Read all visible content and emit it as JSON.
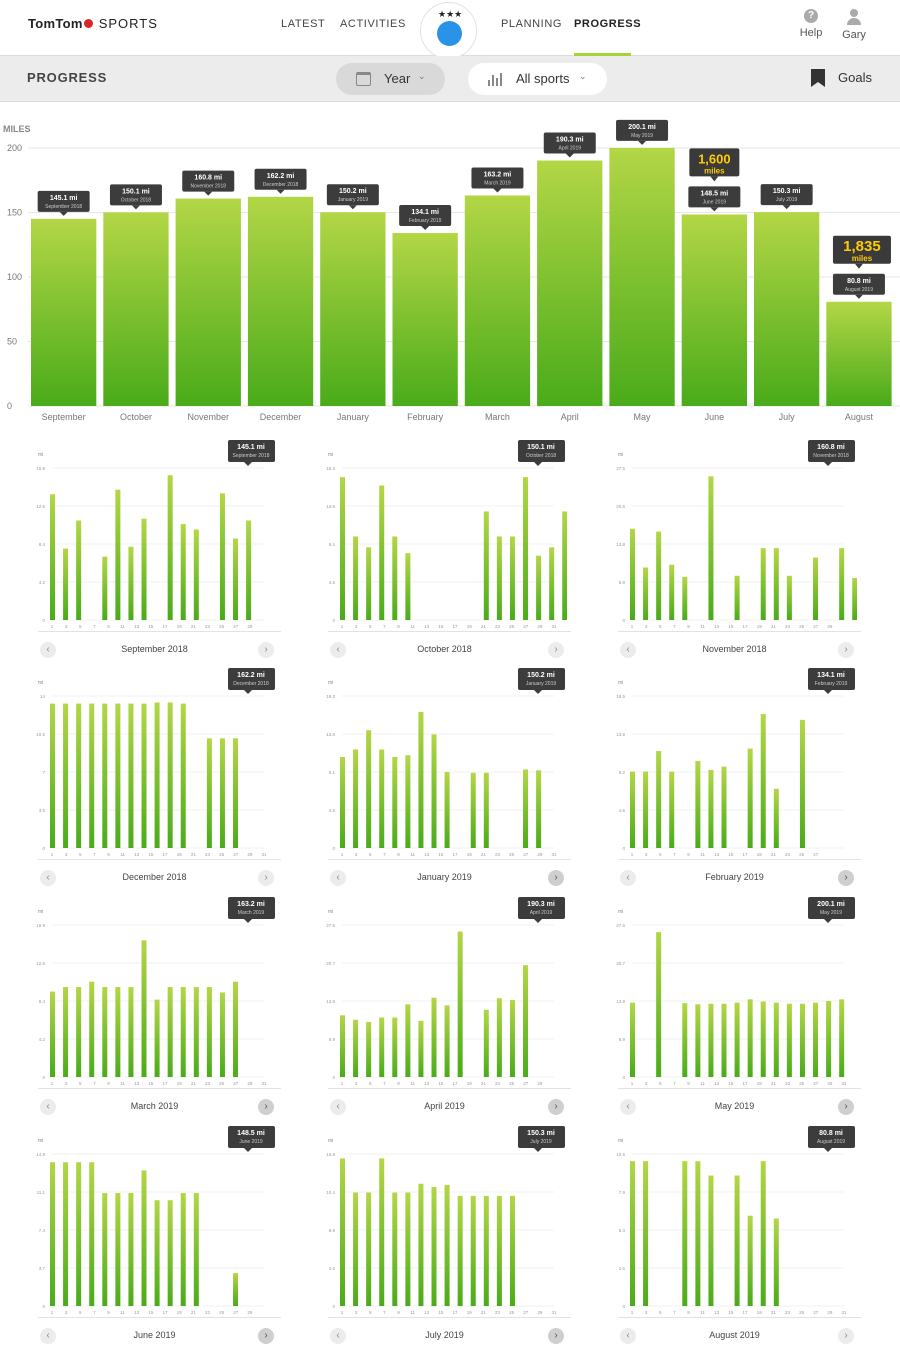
{
  "header": {
    "logo_brand": "TomTom",
    "logo_sub": "SPORTS",
    "nav": [
      {
        "label": "LATEST"
      },
      {
        "label": "ACTIVITIES"
      },
      {
        "label": "PLANNING"
      },
      {
        "label": "PROGRESS"
      }
    ],
    "avatar_stars": "★★★",
    "help_label": "Help",
    "help_glyph": "?",
    "user_label": "Gary"
  },
  "subbar": {
    "title": "PROGRESS",
    "period_label": "Year",
    "sport_label": "All sports",
    "goals_label": "Goals"
  },
  "colors": {
    "bar_top": "#b3d646",
    "bar_bottom": "#4aab1a",
    "accent": "#a8d138",
    "goal_badge": "#ffcb05",
    "tooltip": "#3c3c3c"
  },
  "chart_data": [
    {
      "type": "bar",
      "title": "",
      "ylabel": "MILES",
      "ylim": [
        0,
        200
      ],
      "yticks": [
        0,
        50,
        100,
        150,
        200
      ],
      "categories": [
        "September",
        "October",
        "November",
        "December",
        "January",
        "February",
        "March",
        "April",
        "May",
        "June",
        "July",
        "August"
      ],
      "values": [
        145.1,
        150.1,
        160.8,
        162.2,
        150.2,
        134.1,
        163.2,
        190.3,
        200.1,
        148.5,
        150.3,
        80.8
      ],
      "value_labels": [
        "145.1 mi",
        "150.1 mi",
        "160.8 mi",
        "162.2 mi",
        "150.2 mi",
        "134.1 mi",
        "163.2 mi",
        "190.3 mi",
        "200.1 mi",
        "148.5 mi",
        "150.3 mi",
        "80.8 mi"
      ],
      "sub_labels": [
        "September 2018",
        "October 2018",
        "November 2018",
        "December 2018",
        "January 2019",
        "February 2019",
        "March 2019",
        "April 2019",
        "May 2019",
        "June 2019",
        "July 2019",
        "August 2019"
      ],
      "goal_badges": [
        {
          "index": 9,
          "value": "1,600",
          "unit": "miles"
        },
        {
          "index": 11,
          "value": "1,835",
          "unit": "miles"
        }
      ]
    },
    {
      "type": "bar",
      "name": "September 2018",
      "total": "145.1 mi",
      "ylabel": "mi",
      "yticks": [
        "0",
        "4.2",
        "8.4",
        "12.6",
        "16.8"
      ],
      "ymax": 16.8,
      "days": 30,
      "xticks": [
        "1",
        "3",
        "5",
        "7",
        "9",
        "11",
        "13",
        "15",
        "17",
        "19",
        "21",
        "23",
        "25",
        "27",
        "29"
      ],
      "values": [
        {
          "d": 1,
          "v": 13.9
        },
        {
          "d": 2,
          "v": 7.9
        },
        {
          "d": 3,
          "v": 11
        },
        {
          "d": 5,
          "v": 7
        },
        {
          "d": 6,
          "v": 14.4
        },
        {
          "d": 7,
          "v": 8.1
        },
        {
          "d": 8,
          "v": 11.2
        },
        {
          "d": 10,
          "v": 16
        },
        {
          "d": 11,
          "v": 10.6
        },
        {
          "d": 12,
          "v": 10
        },
        {
          "d": 14,
          "v": 14
        },
        {
          "d": 15,
          "v": 9
        },
        {
          "d": 16,
          "v": 11
        }
      ]
    },
    {
      "type": "bar",
      "name": "October 2018",
      "total": "150.1 mi",
      "ylabel": "mi",
      "yticks": [
        "0",
        "4.5",
        "9.1",
        "13.6",
        "18.2"
      ],
      "ymax": 18.2,
      "days": 31,
      "xticks": [
        "1",
        "3",
        "5",
        "7",
        "9",
        "11",
        "13",
        "15",
        "17",
        "19",
        "21",
        "23",
        "25",
        "27",
        "29",
        "31"
      ],
      "values": [
        {
          "d": 1,
          "v": 17.1
        },
        {
          "d": 2,
          "v": 10
        },
        {
          "d": 3,
          "v": 8.7
        },
        {
          "d": 4,
          "v": 16.1
        },
        {
          "d": 5,
          "v": 10
        },
        {
          "d": 6,
          "v": 8
        },
        {
          "d": 12,
          "v": 13
        },
        {
          "d": 13,
          "v": 10
        },
        {
          "d": 14,
          "v": 10
        },
        {
          "d": 15,
          "v": 17.1
        },
        {
          "d": 16,
          "v": 7.7
        },
        {
          "d": 17,
          "v": 8.7
        },
        {
          "d": 18,
          "v": 13
        }
      ]
    },
    {
      "type": "bar",
      "name": "November 2018",
      "total": "160.8 mi",
      "ylabel": "mi",
      "yticks": [
        "0",
        "6.9",
        "13.8",
        "20.6",
        "27.5"
      ],
      "ymax": 27.5,
      "days": 30,
      "xticks": [
        "1",
        "3",
        "5",
        "7",
        "9",
        "11",
        "13",
        "15",
        "17",
        "19",
        "21",
        "23",
        "25",
        "27",
        "29"
      ],
      "values": [
        {
          "d": 1,
          "v": 16.5
        },
        {
          "d": 2,
          "v": 9.5
        },
        {
          "d": 3,
          "v": 16
        },
        {
          "d": 4,
          "v": 10
        },
        {
          "d": 5,
          "v": 7.8
        },
        {
          "d": 7,
          "v": 26
        },
        {
          "d": 9,
          "v": 8
        },
        {
          "d": 11,
          "v": 13
        },
        {
          "d": 12,
          "v": 13
        },
        {
          "d": 13,
          "v": 8
        },
        {
          "d": 15,
          "v": 11.3
        },
        {
          "d": 17,
          "v": 13
        },
        {
          "d": 18,
          "v": 7.6
        }
      ]
    },
    {
      "type": "bar",
      "name": "December 2018",
      "total": "162.2 mi",
      "ylabel": "mi",
      "yticks": [
        "0",
        "3.5",
        "7",
        "10.5",
        "14"
      ],
      "ymax": 14,
      "days": 31,
      "xticks": [
        "1",
        "3",
        "5",
        "7",
        "9",
        "11",
        "13",
        "15",
        "17",
        "19",
        "21",
        "23",
        "25",
        "27",
        "29",
        "31"
      ],
      "values": [
        {
          "d": 1,
          "v": 13.3
        },
        {
          "d": 2,
          "v": 13.3
        },
        {
          "d": 3,
          "v": 13.3
        },
        {
          "d": 4,
          "v": 13.3
        },
        {
          "d": 5,
          "v": 13.3
        },
        {
          "d": 6,
          "v": 13.3
        },
        {
          "d": 7,
          "v": 13.3
        },
        {
          "d": 8,
          "v": 13.3
        },
        {
          "d": 9,
          "v": 13.4
        },
        {
          "d": 10,
          "v": 13.4
        },
        {
          "d": 11,
          "v": 13.3
        },
        {
          "d": 13,
          "v": 10.1
        },
        {
          "d": 14,
          "v": 10.1
        },
        {
          "d": 15,
          "v": 10.1
        }
      ]
    },
    {
      "type": "bar",
      "name": "January 2019",
      "total": "150.2 mi",
      "ylabel": "mi",
      "yticks": [
        "0",
        "4.5",
        "9.1",
        "13.6",
        "18.2"
      ],
      "ymax": 18.2,
      "days": 31,
      "xticks": [
        "1",
        "3",
        "5",
        "7",
        "9",
        "11",
        "13",
        "15",
        "17",
        "19",
        "21",
        "23",
        "25",
        "27",
        "29",
        "31"
      ],
      "values": [
        {
          "d": 1,
          "v": 10.9
        },
        {
          "d": 2,
          "v": 11.8
        },
        {
          "d": 3,
          "v": 14.1
        },
        {
          "d": 4,
          "v": 11.8
        },
        {
          "d": 5,
          "v": 10.9
        },
        {
          "d": 6,
          "v": 11.1
        },
        {
          "d": 7,
          "v": 16.3
        },
        {
          "d": 8,
          "v": 13.6
        },
        {
          "d": 9,
          "v": 9.1
        },
        {
          "d": 11,
          "v": 9
        },
        {
          "d": 12,
          "v": 9
        },
        {
          "d": 15,
          "v": 9.4
        },
        {
          "d": 16,
          "v": 9.3
        }
      ]
    },
    {
      "type": "bar",
      "name": "February 2019",
      "total": "134.1 mi",
      "ylabel": "mi",
      "yticks": [
        "0",
        "4.6",
        "9.2",
        "13.8",
        "18.5"
      ],
      "ymax": 18.5,
      "days": 28,
      "xticks": [
        "1",
        "3",
        "5",
        "7",
        "9",
        "11",
        "13",
        "15",
        "17",
        "19",
        "21",
        "23",
        "25",
        "27"
      ],
      "values": [
        {
          "d": 1,
          "v": 9.3
        },
        {
          "d": 2,
          "v": 9.3
        },
        {
          "d": 3,
          "v": 11.8
        },
        {
          "d": 4,
          "v": 9.3
        },
        {
          "d": 6,
          "v": 10.6
        },
        {
          "d": 7,
          "v": 9.5
        },
        {
          "d": 8,
          "v": 9.9
        },
        {
          "d": 10,
          "v": 12.1
        },
        {
          "d": 11,
          "v": 16.3
        },
        {
          "d": 12,
          "v": 7.2
        },
        {
          "d": 14,
          "v": 15.6
        }
      ]
    },
    {
      "type": "bar",
      "name": "March 2019",
      "total": "163.2 mi",
      "ylabel": "mi",
      "yticks": [
        "0",
        "4.2",
        "8.4",
        "12.6",
        "16.9"
      ],
      "ymax": 16.9,
      "days": 31,
      "xticks": [
        "1",
        "3",
        "5",
        "7",
        "9",
        "11",
        "13",
        "15",
        "17",
        "19",
        "21",
        "23",
        "25",
        "27",
        "29",
        "31"
      ],
      "values": [
        {
          "d": 1,
          "v": 9.5
        },
        {
          "d": 2,
          "v": 10
        },
        {
          "d": 3,
          "v": 10
        },
        {
          "d": 4,
          "v": 10.6
        },
        {
          "d": 5,
          "v": 10
        },
        {
          "d": 6,
          "v": 10
        },
        {
          "d": 7,
          "v": 10
        },
        {
          "d": 8,
          "v": 15.2
        },
        {
          "d": 9,
          "v": 8.6
        },
        {
          "d": 10,
          "v": 10
        },
        {
          "d": 11,
          "v": 10
        },
        {
          "d": 12,
          "v": 10
        },
        {
          "d": 13,
          "v": 10
        },
        {
          "d": 14,
          "v": 9.4
        },
        {
          "d": 15,
          "v": 10.6
        }
      ]
    },
    {
      "type": "bar",
      "name": "April 2019",
      "total": "190.3 mi",
      "ylabel": "mi",
      "yticks": [
        "0",
        "6.9",
        "13.8",
        "20.7",
        "27.6"
      ],
      "ymax": 27.6,
      "days": 30,
      "xticks": [
        "1",
        "3",
        "5",
        "7",
        "9",
        "11",
        "13",
        "15",
        "17",
        "19",
        "21",
        "23",
        "25",
        "27",
        "29"
      ],
      "values": [
        {
          "d": 1,
          "v": 11.2
        },
        {
          "d": 2,
          "v": 10.4
        },
        {
          "d": 3,
          "v": 10
        },
        {
          "d": 4,
          "v": 10.8
        },
        {
          "d": 5,
          "v": 10.8
        },
        {
          "d": 6,
          "v": 13.2
        },
        {
          "d": 7,
          "v": 10.2
        },
        {
          "d": 8,
          "v": 14.4
        },
        {
          "d": 9,
          "v": 13
        },
        {
          "d": 10,
          "v": 26.4
        },
        {
          "d": 12,
          "v": 12.2
        },
        {
          "d": 13,
          "v": 14.3
        },
        {
          "d": 14,
          "v": 14
        },
        {
          "d": 15,
          "v": 20.3
        }
      ]
    },
    {
      "type": "bar",
      "name": "May 2019",
      "total": "200.1 mi",
      "ylabel": "mi",
      "yticks": [
        "0",
        "6.9",
        "13.8",
        "20.7",
        "27.6"
      ],
      "ymax": 27.6,
      "days": 31,
      "xticks": [
        "1",
        "3",
        "5",
        "7",
        "9",
        "11",
        "13",
        "15",
        "17",
        "19",
        "21",
        "23",
        "25",
        "27",
        "29",
        "31"
      ],
      "values": [
        {
          "d": 1,
          "v": 13.5
        },
        {
          "d": 3,
          "v": 26.3
        },
        {
          "d": 5,
          "v": 13.4
        },
        {
          "d": 6,
          "v": 13.2
        },
        {
          "d": 7,
          "v": 13.3
        },
        {
          "d": 8,
          "v": 13.3
        },
        {
          "d": 9,
          "v": 13.5
        },
        {
          "d": 10,
          "v": 14.1
        },
        {
          "d": 11,
          "v": 13.7
        },
        {
          "d": 12,
          "v": 13.5
        },
        {
          "d": 13,
          "v": 13.3
        },
        {
          "d": 14,
          "v": 13.3
        },
        {
          "d": 15,
          "v": 13.5
        },
        {
          "d": 16,
          "v": 13.8
        },
        {
          "d": 17,
          "v": 14.1
        }
      ]
    },
    {
      "type": "bar",
      "name": "June 2019",
      "total": "148.5 mi",
      "ylabel": "mi",
      "yticks": [
        "0",
        "3.7",
        "7.4",
        "11.1",
        "14.8"
      ],
      "ymax": 14.8,
      "days": 30,
      "xticks": [
        "1",
        "3",
        "5",
        "7",
        "9",
        "11",
        "13",
        "15",
        "17",
        "19",
        "21",
        "23",
        "25",
        "27",
        "29"
      ],
      "values": [
        {
          "d": 1,
          "v": 14
        },
        {
          "d": 2,
          "v": 14
        },
        {
          "d": 3,
          "v": 14
        },
        {
          "d": 4,
          "v": 14
        },
        {
          "d": 5,
          "v": 11
        },
        {
          "d": 6,
          "v": 11
        },
        {
          "d": 7,
          "v": 11
        },
        {
          "d": 8,
          "v": 13.2
        },
        {
          "d": 9,
          "v": 10.3
        },
        {
          "d": 10,
          "v": 10.3
        },
        {
          "d": 11,
          "v": 11
        },
        {
          "d": 12,
          "v": 11
        },
        {
          "d": 15,
          "v": 3.2
        }
      ]
    },
    {
      "type": "bar",
      "name": "July 2019",
      "total": "150.3 mi",
      "ylabel": "mi",
      "yticks": [
        "0",
        "3.5",
        "6.9",
        "10.4",
        "13.8"
      ],
      "ymax": 13.8,
      "days": 31,
      "xticks": [
        "1",
        "3",
        "5",
        "7",
        "9",
        "11",
        "13",
        "15",
        "17",
        "19",
        "21",
        "23",
        "25",
        "27",
        "29",
        "31"
      ],
      "values": [
        {
          "d": 1,
          "v": 13.4
        },
        {
          "d": 2,
          "v": 10.3
        },
        {
          "d": 3,
          "v": 10.3
        },
        {
          "d": 4,
          "v": 13.4
        },
        {
          "d": 5,
          "v": 10.3
        },
        {
          "d": 6,
          "v": 10.3
        },
        {
          "d": 7,
          "v": 11.1
        },
        {
          "d": 8,
          "v": 10.8
        },
        {
          "d": 9,
          "v": 11
        },
        {
          "d": 10,
          "v": 10
        },
        {
          "d": 11,
          "v": 10
        },
        {
          "d": 12,
          "v": 10
        },
        {
          "d": 13,
          "v": 10
        },
        {
          "d": 14,
          "v": 10
        }
      ]
    },
    {
      "type": "bar",
      "name": "August 2019",
      "total": "80.8 mi",
      "ylabel": "mi",
      "yticks": [
        "0",
        "2.6",
        "5.3",
        "7.9",
        "10.6"
      ],
      "ymax": 10.6,
      "days": 31,
      "xticks": [
        "1",
        "3",
        "5",
        "7",
        "9",
        "11",
        "13",
        "15",
        "17",
        "19",
        "21",
        "23",
        "25",
        "27",
        "29",
        "31"
      ],
      "values": [
        {
          "d": 1,
          "v": 10.1
        },
        {
          "d": 2,
          "v": 10.1
        },
        {
          "d": 5,
          "v": 10.1
        },
        {
          "d": 6,
          "v": 10.1
        },
        {
          "d": 7,
          "v": 9.1
        },
        {
          "d": 9,
          "v": 9.1
        },
        {
          "d": 10,
          "v": 6.3
        },
        {
          "d": 11,
          "v": 10.1
        },
        {
          "d": 12,
          "v": 6.1
        }
      ]
    }
  ]
}
